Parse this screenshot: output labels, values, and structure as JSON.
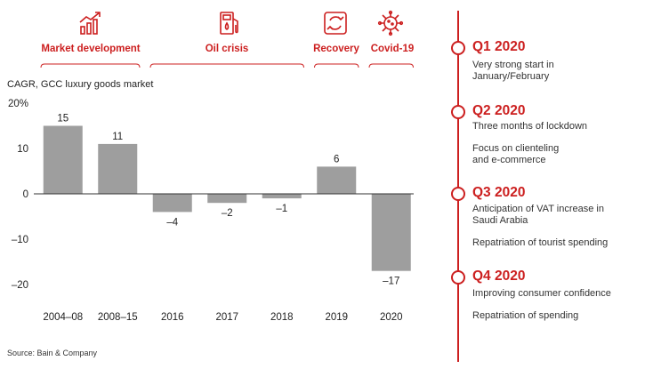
{
  "phases": [
    {
      "label": "Market development",
      "icon": "bar-chart-growth-icon"
    },
    {
      "label": "Oil crisis",
      "icon": "fuel-pump-icon"
    },
    {
      "label": "Recovery",
      "icon": "recovery-cycle-icon"
    },
    {
      "label": "Covid-19",
      "icon": "virus-icon"
    }
  ],
  "chart_data": {
    "type": "bar",
    "title": "",
    "ylabel": "CAGR, GCC luxury goods market",
    "xlabel": "",
    "categories": [
      "2004–08",
      "2008–15",
      "2016",
      "2017",
      "2018",
      "2019",
      "2020"
    ],
    "values": [
      15,
      11,
      -4,
      -2,
      -1,
      6,
      -17
    ],
    "value_labels": [
      "15",
      "11",
      "–4",
      "–2",
      "–1",
      "6",
      "–17"
    ],
    "ylim": [
      -20,
      20
    ],
    "yticks": [
      20,
      10,
      0,
      -10,
      -20
    ],
    "ytick_labels": [
      "20%",
      "10",
      "0",
      "–10",
      "–20"
    ],
    "bar_color": "#9e9e9e"
  },
  "timeline": [
    {
      "title": "Q1 2020",
      "lines": [
        "Very strong start in",
        "January/February"
      ]
    },
    {
      "title": "Q2 2020",
      "lines": [
        "Three months of lockdown",
        "Focus on clienteling",
        "and e-commerce"
      ]
    },
    {
      "title": "Q3 2020",
      "lines": [
        "Anticipation of VAT increase in",
        "Saudi Arabia",
        "Repatriation of tourist spending"
      ]
    },
    {
      "title": "Q4 2020",
      "lines": [
        "Improving consumer confidence",
        "Repatriation of spending"
      ]
    }
  ],
  "accent_color": "#cc1f1f",
  "source": "Source: Bain & Company"
}
